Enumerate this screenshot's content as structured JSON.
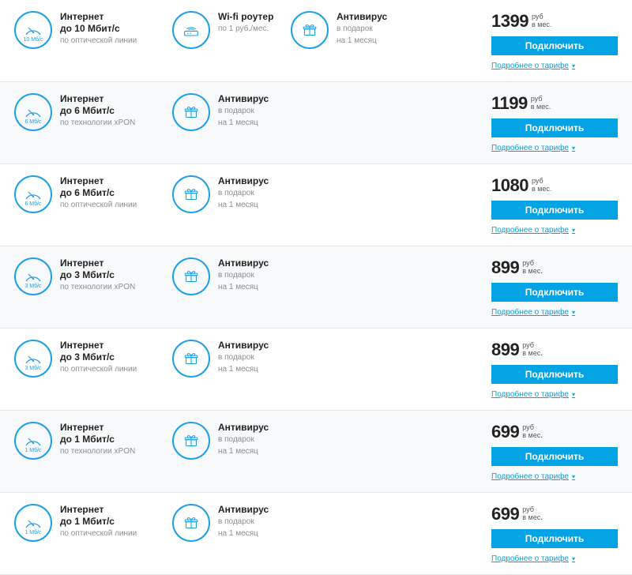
{
  "common": {
    "internet_label": "Интернет",
    "antivirus_title": "Антивирус",
    "antivirus_sub1": "в подарок",
    "antivirus_sub2": "на 1 месяц",
    "currency": "руб",
    "period": "в мес.",
    "connect_label": "Подключить",
    "more_label": "Подробнее о тарифе",
    "router_title": "Wi-fi роутер",
    "router_sub": "по 1 руб./мес.",
    "tech_optical": "по оптической линии",
    "tech_xpon": "по технологии xPON",
    "accent_color": "#04a3e3",
    "icon_border_color": "#1da1e6"
  },
  "plans": [
    {
      "speed_line": "до 10 Мбит/с",
      "speed_badge": "10 Мб/с",
      "tech": "по оптической линии",
      "router": true,
      "price": "1399"
    },
    {
      "speed_line": "до 6 Мбит/с",
      "speed_badge": "6 Мб/с",
      "tech": "по технологии xPON",
      "router": false,
      "price": "1199"
    },
    {
      "speed_line": "до 6 Мбит/с",
      "speed_badge": "6 Мб/с",
      "tech": "по оптической линии",
      "router": false,
      "price": "1080"
    },
    {
      "speed_line": "до 3 Мбит/с",
      "speed_badge": "3 Мб/с",
      "tech": "по технологии xPON",
      "router": false,
      "price": "899"
    },
    {
      "speed_line": "до 3 Мбит/с",
      "speed_badge": "3 Мб/с",
      "tech": "по оптической линии",
      "router": false,
      "price": "899"
    },
    {
      "speed_line": "до 1 Мбит/с",
      "speed_badge": "1 Мб/с",
      "tech": "по технологии xPON",
      "router": false,
      "price": "699"
    },
    {
      "speed_line": "до 1 Мбит/с",
      "speed_badge": "1 Мб/с",
      "tech": "по оптической линии",
      "router": false,
      "price": "699"
    }
  ]
}
